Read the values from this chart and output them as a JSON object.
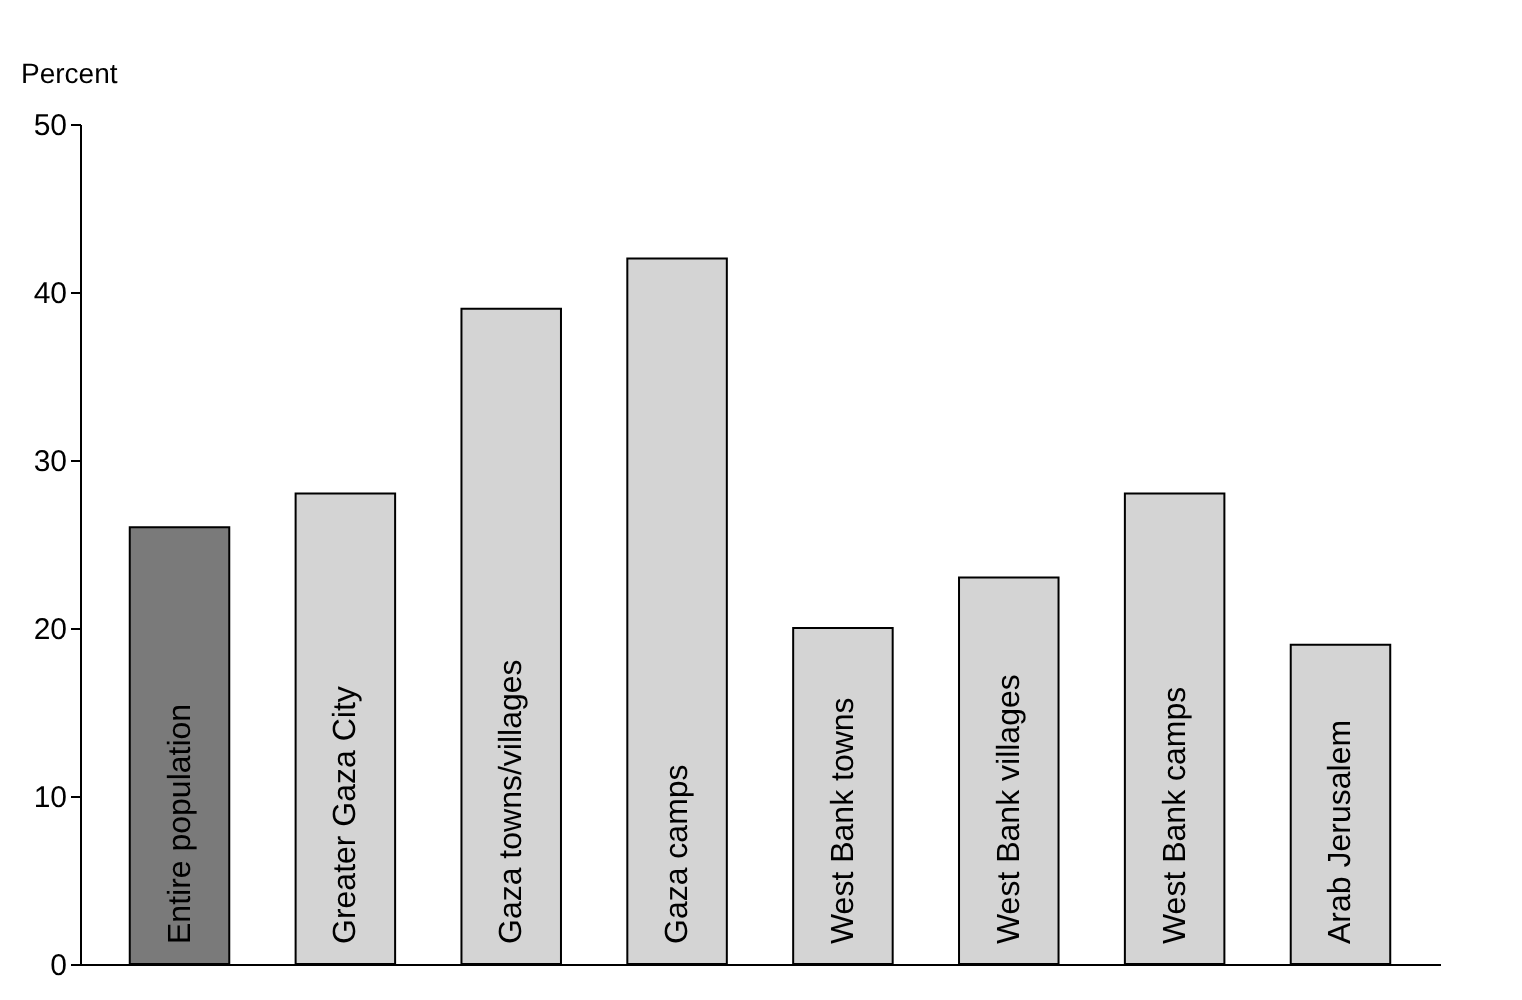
{
  "chart_data": {
    "type": "bar",
    "ylabel": "Percent",
    "categories": [
      "Entire population",
      "Greater Gaza City",
      "Gaza towns/villages",
      "Gaza camps",
      "West Bank towns",
      "West Bank villages",
      "West Bank camps",
      "Arab Jerusalem"
    ],
    "values": [
      26,
      28,
      39,
      42,
      20,
      23,
      28,
      19
    ],
    "colors": [
      "#7a7a7a",
      "#d4d4d4",
      "#d4d4d4",
      "#d4d4d4",
      "#d4d4d4",
      "#d4d4d4",
      "#d4d4d4",
      "#d4d4d4"
    ],
    "ylim": [
      0,
      50
    ],
    "yticks": [
      0,
      10,
      20,
      30,
      40,
      50
    ]
  }
}
